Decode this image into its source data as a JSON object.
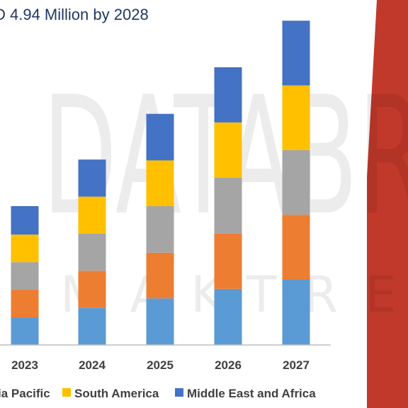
{
  "subtitle": "D 4.94 Million by 2028",
  "watermark": {
    "text": "DATABR",
    "subtext": "MAKTRE"
  },
  "colors": {
    "seg1": "#5b9bd5",
    "seg2": "#ed7d31",
    "seg3": "#a5a5a5",
    "seg4": "#ffc000",
    "seg5": "#4472c4",
    "accent_red": "#c0392b",
    "title": "#1f3864",
    "axis": "#bfbfbf"
  },
  "chart_data": {
    "type": "bar",
    "stacked": true,
    "categories": [
      "2023",
      "2024",
      "2025",
      "2026",
      "2027"
    ],
    "series": [
      {
        "values": [
          32,
          43,
          54,
          65,
          76
        ]
      },
      {
        "name": "",
        "values": [
          32,
          43,
          53,
          64,
          75
        ]
      },
      {
        "name": "",
        "values": [
          32,
          43,
          54,
          65,
          75
        ]
      },
      {
        "name": "South America",
        "values": [
          32,
          43,
          53,
          64,
          75
        ]
      },
      {
        "name": "Middle East and Africa",
        "values": [
          33,
          43,
          54,
          64,
          75
        ]
      }
    ],
    "legend": [
      {
        "label": "ia Pacific",
        "color": "#ed7d31"
      },
      {
        "label": "South America",
        "color": "#ffc000"
      },
      {
        "label": "Middle East and Africa",
        "color": "#4472c4"
      }
    ],
    "ylim": [
      0,
      400
    ],
    "grid": false,
    "legend_position": "bottom"
  }
}
